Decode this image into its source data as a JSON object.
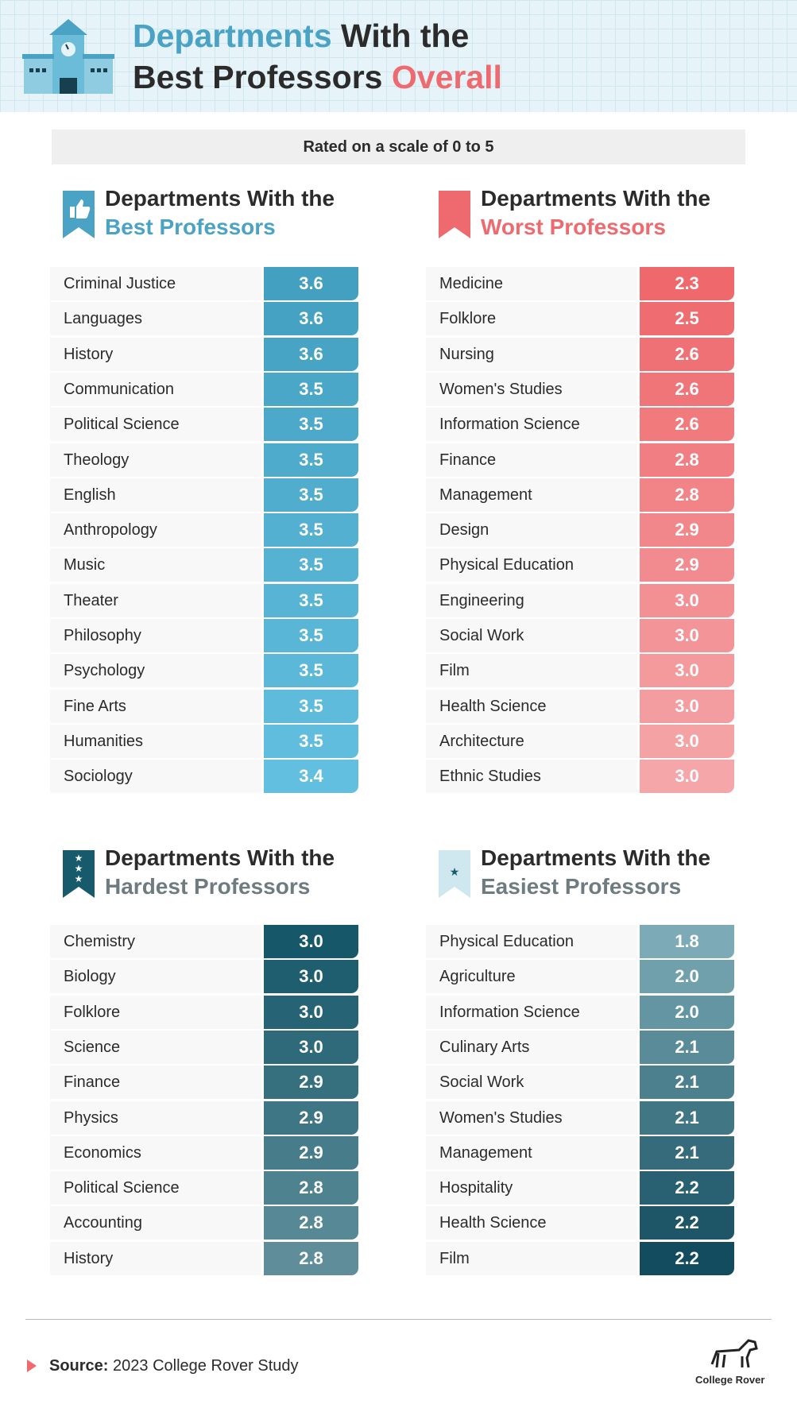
{
  "header": {
    "title": {
      "part1": "Departments",
      "part2": "With the",
      "part3": "Best Professors",
      "part4": "Overall"
    },
    "subtitle": "Rated on a scale of 0 to 5"
  },
  "panels": [
    {
      "heading": "Departments With the",
      "highlight": "Best Professors",
      "rows": [
        [
          "Criminal Justice",
          "3.6"
        ],
        [
          "Languages",
          "3.6"
        ],
        [
          "History",
          "3.6"
        ],
        [
          "Communication",
          "3.5"
        ],
        [
          "Political Science",
          "3.5"
        ],
        [
          "Theology",
          "3.5"
        ],
        [
          "English",
          "3.5"
        ],
        [
          "Anthropology",
          "3.5"
        ],
        [
          "Music",
          "3.5"
        ],
        [
          "Theater",
          "3.5"
        ],
        [
          "Philosophy",
          "3.5"
        ],
        [
          "Psychology",
          "3.5"
        ],
        [
          "Fine Arts",
          "3.5"
        ],
        [
          "Humanities",
          "3.5"
        ],
        [
          "Sociology",
          "3.4"
        ]
      ]
    },
    {
      "heading": "Departments With the",
      "highlight": "Worst Professors",
      "rows": [
        [
          "Medicine",
          "2.3"
        ],
        [
          "Folklore",
          "2.5"
        ],
        [
          "Nursing",
          "2.6"
        ],
        [
          "Women's Studies",
          "2.6"
        ],
        [
          "Information Science",
          "2.6"
        ],
        [
          "Finance",
          "2.8"
        ],
        [
          "Management",
          "2.8"
        ],
        [
          "Design",
          "2.9"
        ],
        [
          "Physical Education",
          "2.9"
        ],
        [
          "Engineering",
          "3.0"
        ],
        [
          "Social Work",
          "3.0"
        ],
        [
          "Film",
          "3.0"
        ],
        [
          "Health Science",
          "3.0"
        ],
        [
          "Architecture",
          "3.0"
        ],
        [
          "Ethnic Studies",
          "3.0"
        ]
      ]
    },
    {
      "heading": "Departments With the",
      "highlight": "Hardest Professors",
      "rows": [
        [
          "Chemistry",
          "3.0"
        ],
        [
          "Biology",
          "3.0"
        ],
        [
          "Folklore",
          "3.0"
        ],
        [
          "Science",
          "3.0"
        ],
        [
          "Finance",
          "2.9"
        ],
        [
          "Physics",
          "2.9"
        ],
        [
          "Economics",
          "2.9"
        ],
        [
          "Political Science",
          "2.8"
        ],
        [
          "Accounting",
          "2.8"
        ],
        [
          "History",
          "2.8"
        ]
      ]
    },
    {
      "heading": "Departments With the",
      "highlight": "Easiest Professors",
      "rows": [
        [
          "Physical Education",
          "1.8"
        ],
        [
          "Agriculture",
          "2.0"
        ],
        [
          "Information Science",
          "2.0"
        ],
        [
          "Culinary Arts",
          "2.1"
        ],
        [
          "Social Work",
          "2.1"
        ],
        [
          "Women's Studies",
          "2.1"
        ],
        [
          "Management",
          "2.1"
        ],
        [
          "Hospitality",
          "2.2"
        ],
        [
          "Health Science",
          "2.2"
        ],
        [
          "Film",
          "2.2"
        ]
      ]
    }
  ],
  "footer": {
    "source_label": "Source:",
    "source_text": "2023 College Rover Study",
    "logo_text": "College Rover"
  }
}
